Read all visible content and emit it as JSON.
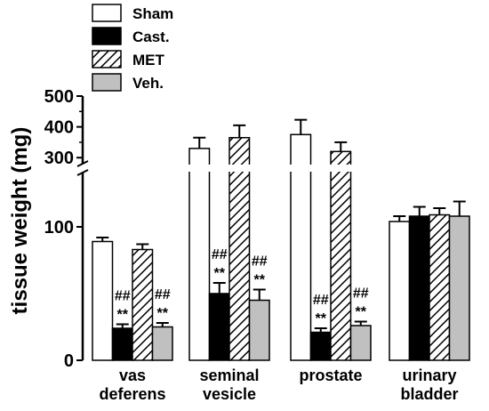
{
  "chart_data": {
    "type": "bar",
    "ylabel": "tissue weight (mg)",
    "y_axis": {
      "broken": true,
      "lower_segment": {
        "range": [
          0,
          150
        ],
        "ticks": [
          0,
          100
        ]
      },
      "upper_segment": {
        "range": [
          240,
          500
        ],
        "ticks": [
          300,
          400,
          500
        ]
      }
    },
    "grid": false,
    "legend_position": "top-left",
    "categories": [
      {
        "lines": [
          "vas",
          "deferens"
        ]
      },
      {
        "lines": [
          "seminal",
          "vesicle"
        ]
      },
      {
        "lines": [
          "prostate"
        ]
      },
      {
        "lines": [
          "urinary",
          "bladder"
        ]
      }
    ],
    "series": [
      {
        "name": "Sham",
        "fill": "#ffffff",
        "pattern": "solid",
        "values": [
          89,
          330,
          375,
          104
        ],
        "errors": [
          3,
          35,
          48,
          4
        ]
      },
      {
        "name": "Cast.",
        "fill": "#000000",
        "pattern": "solid",
        "values": [
          24,
          50,
          21,
          108
        ],
        "errors": [
          3,
          8,
          3,
          7
        ]
      },
      {
        "name": "MET",
        "fill": "#ffffff",
        "pattern": "hatch",
        "values": [
          83,
          365,
          320,
          109
        ],
        "errors": [
          4,
          40,
          30,
          5
        ]
      },
      {
        "name": "Veh.",
        "fill": "#c0c0c0",
        "pattern": "solid",
        "values": [
          25,
          45,
          26,
          108
        ],
        "errors": [
          3,
          8,
          3,
          11
        ]
      }
    ],
    "annotations": [
      {
        "category": 0,
        "series": 1,
        "labels": [
          "##",
          "**"
        ]
      },
      {
        "category": 0,
        "series": 3,
        "labels": [
          "##",
          "**"
        ]
      },
      {
        "category": 1,
        "series": 1,
        "labels": [
          "##",
          "**"
        ]
      },
      {
        "category": 1,
        "series": 3,
        "labels": [
          "##",
          "**"
        ]
      },
      {
        "category": 2,
        "series": 1,
        "labels": [
          "##",
          "**"
        ]
      },
      {
        "category": 2,
        "series": 3,
        "labels": [
          "##",
          "**"
        ]
      }
    ]
  }
}
